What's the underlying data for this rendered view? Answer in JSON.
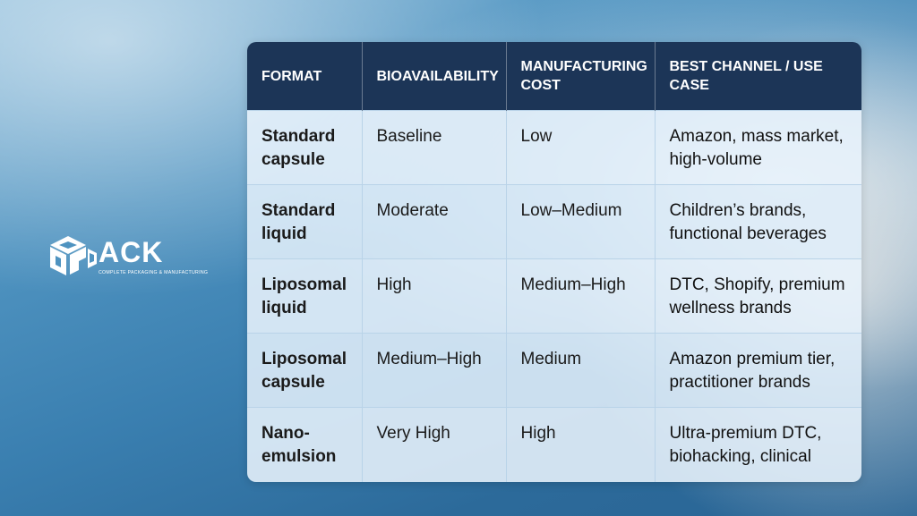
{
  "logo": {
    "word": "ACK",
    "tagline": "COMPLETE PACKAGING & MANUFACTURING",
    "icon": "cpack-cube-icon"
  },
  "table": {
    "headers": [
      "FORMAT",
      "BIOAVAILABILITY",
      "MANUFACTURING COST",
      "BEST CHANNEL / USE CASE"
    ],
    "rows": [
      {
        "format": "Standard capsule",
        "bioavailability": "Baseline",
        "cost": "Low",
        "channel": "Amazon, mass market, high-volume"
      },
      {
        "format": "Standard liquid",
        "bioavailability": "Moderate",
        "cost": "Low–Medium",
        "channel": "Children’s brands, functional beverages"
      },
      {
        "format": "Liposomal liquid",
        "bioavailability": "High",
        "cost": "Medium–High",
        "channel": "DTC, Shopify, premium wellness brands"
      },
      {
        "format": "Liposomal capsule",
        "bioavailability": "Medium–High",
        "cost": "Medium",
        "channel": "Amazon premium tier, practitioner brands"
      },
      {
        "format": "Nano-emulsion",
        "bioavailability": "Very High",
        "cost": "High",
        "channel": "Ultra-premium DTC, biohacking, clinical"
      }
    ]
  },
  "colors": {
    "header_bg": "#1c3557",
    "cell_bg": "#e4f0fa",
    "background_blue": "#3a7fb0"
  }
}
